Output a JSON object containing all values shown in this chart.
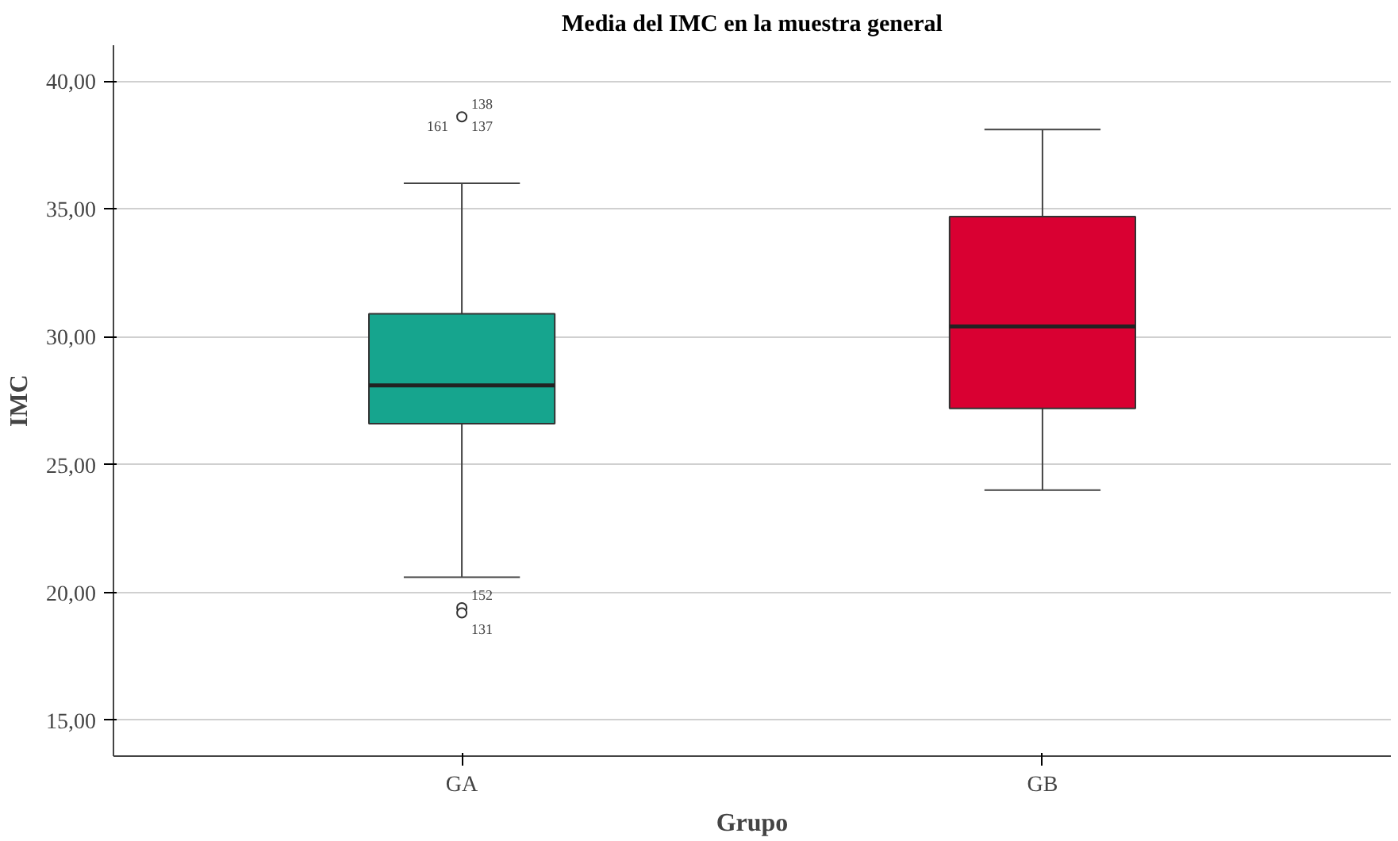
{
  "chart_data": {
    "type": "box",
    "title": "Media del IMC en la muestra general",
    "xlabel": "Grupo",
    "ylabel": "IMC",
    "categories": [
      "GA",
      "GB"
    ],
    "series": [
      {
        "colors": [
          "#16a58e",
          "#d90032"
        ],
        "boxes": [
          {
            "low": 20.6,
            "q1": 26.6,
            "median": 28.1,
            "q3": 30.9,
            "high": 36.0,
            "outliers": [
              38.6,
              19.4,
              19.2
            ]
          },
          {
            "low": 24.0,
            "q1": 27.2,
            "median": 30.4,
            "q3": 34.7,
            "high": 38.1
          }
        ]
      }
    ],
    "annotations": [
      "138",
      "161",
      "137",
      "152",
      "131"
    ],
    "ylim": [
      13.6,
      41.4
    ],
    "yticks": [
      {
        "value": 15,
        "label": "15,00"
      },
      {
        "value": 20,
        "label": "20,00"
      },
      {
        "value": 25,
        "label": "25,00"
      },
      {
        "value": 30,
        "label": "30,00"
      },
      {
        "value": 35,
        "label": "35,00"
      },
      {
        "value": 40,
        "label": "40,00"
      }
    ],
    "grid": "y"
  }
}
